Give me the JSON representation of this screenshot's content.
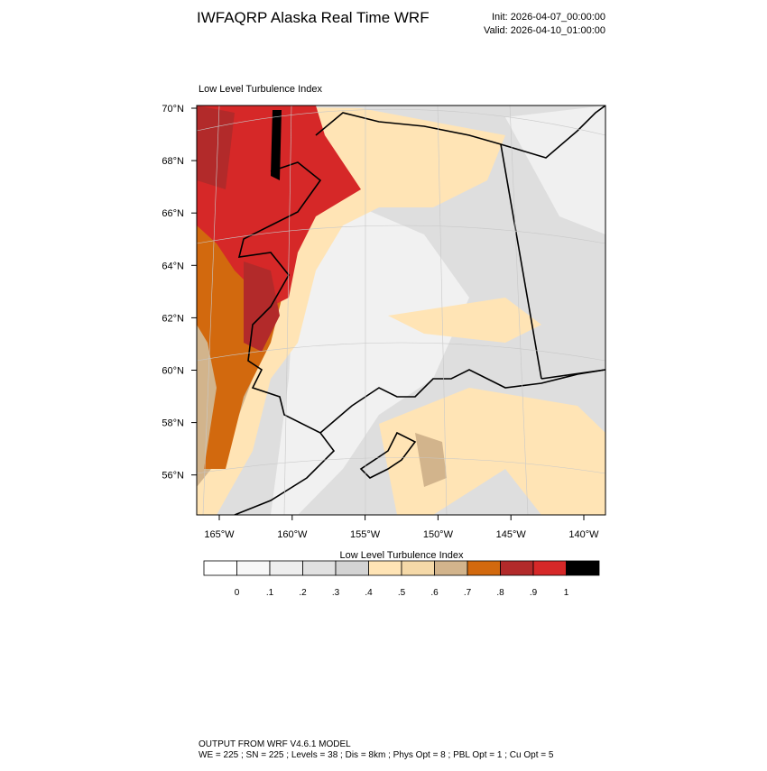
{
  "header": {
    "title": "IWFAQRP Alaska Real Time WRF",
    "init": "Init: 2026-04-07_00:00:00",
    "valid": "Valid: 2026-04-10_01:00:00"
  },
  "map": {
    "title": "Low Level Turbulence Index",
    "lat_labels": [
      "70°N",
      "68°N",
      "66°N",
      "64°N",
      "62°N",
      "60°N",
      "58°N",
      "56°N"
    ],
    "lon_labels": [
      "165°W",
      "160°W",
      "155°W",
      "150°W",
      "145°W",
      "140°W"
    ]
  },
  "colorbar": {
    "title": "Low Level Turbulence Index",
    "colors": [
      "#ffffff",
      "#f7f7f7",
      "#eeeeee",
      "#e1e1e1",
      "#d3d3d3",
      "#ffe4b5",
      "#f5d9a8",
      "#d2b48c",
      "#d2690e",
      "#b22a2a",
      "#d62828",
      "#000000"
    ],
    "labels": [
      "0",
      ".1",
      ".2",
      ".3",
      ".4",
      ".5",
      ".6",
      ".7",
      ".8",
      ".9",
      "1"
    ]
  },
  "footer": {
    "line1": "OUTPUT FROM WRF V4.6.1 MODEL",
    "line2": "WE = 225 ; SN = 225 ; Levels = 38 ; Dis = 8km ; Phys Opt = 8 ; PBL Opt = 1 ; Cu Opt = 5"
  }
}
